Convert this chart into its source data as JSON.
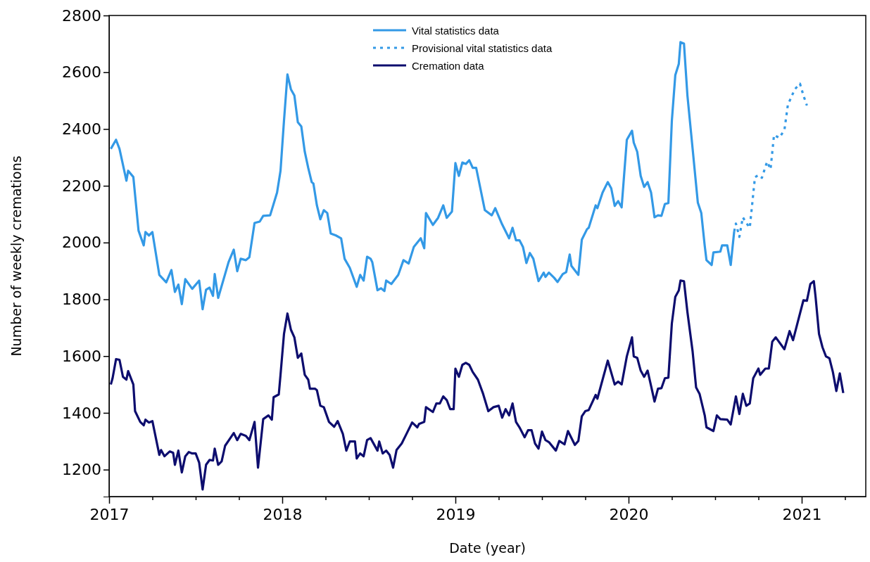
{
  "chart_data": {
    "type": "line",
    "xlabel": "Date (year)",
    "ylabel": "Number of weekly cremations",
    "xlim": [
      2017,
      2021.37
    ],
    "ylim": [
      1105,
      2800
    ],
    "xticks": [
      2017,
      {
        "value": 2017.25,
        "label": null
      },
      {
        "value": 2017.5,
        "label": null
      },
      {
        "value": 2017.75,
        "label": null
      },
      2018,
      {
        "value": 2018.25,
        "label": null
      },
      {
        "value": 2018.5,
        "label": null
      },
      {
        "value": 2018.75,
        "label": null
      },
      2019,
      {
        "value": 2019.25,
        "label": null
      },
      {
        "value": 2019.5,
        "label": null
      },
      {
        "value": 2019.75,
        "label": null
      },
      2020,
      {
        "value": 2020.25,
        "label": null
      },
      {
        "value": 2020.5,
        "label": null
      },
      {
        "value": 2020.75,
        "label": null
      },
      2021,
      {
        "value": 2021.25,
        "label": null
      }
    ],
    "yticks": [
      1200,
      1400,
      1600,
      1800,
      2000,
      2200,
      2400,
      2600,
      2800
    ],
    "grid": false,
    "legend": "top",
    "marker": "none",
    "series": [
      {
        "name": "Vital statistics data",
        "color": "#3399e6",
        "line_style": "solid",
        "x": [
          2017.01,
          2017.04,
          2017.06,
          2017.1,
          2017.11,
          2017.14,
          2017.17,
          2017.2,
          2017.21,
          2017.23,
          2017.25,
          2017.29,
          2017.33,
          2017.36,
          2017.38,
          2017.4,
          2017.42,
          2017.44,
          2017.48,
          2017.52,
          2017.54,
          2017.56,
          2017.58,
          2017.6,
          2017.61,
          2017.63,
          2017.69,
          2017.72,
          2017.74,
          2017.76,
          2017.79,
          2017.81,
          2017.84,
          2017.87,
          2017.89,
          2017.93,
          2017.97,
          2017.99,
          2018.01,
          2018.03,
          2018.05,
          2018.07,
          2018.09,
          2018.11,
          2018.13,
          2018.15,
          2018.17,
          2018.18,
          2018.2,
          2018.22,
          2018.24,
          2018.26,
          2018.28,
          2018.31,
          2018.34,
          2018.36,
          2018.39,
          2018.43,
          2018.45,
          2018.47,
          2018.49,
          2018.51,
          2018.52,
          2018.55,
          2018.57,
          2018.59,
          2018.6,
          2018.63,
          2018.67,
          2018.7,
          2018.73,
          2018.76,
          2018.8,
          2018.82,
          2018.83,
          2018.87,
          2018.9,
          2018.93,
          2018.95,
          2018.98,
          2019.0,
          2019.02,
          2019.04,
          2019.06,
          2019.08,
          2019.1,
          2019.12,
          2019.17,
          2019.21,
          2019.23,
          2019.27,
          2019.31,
          2019.33,
          2019.35,
          2019.37,
          2019.39,
          2019.41,
          2019.43,
          2019.45,
          2019.48,
          2019.51,
          2019.52,
          2019.54,
          2019.57,
          2019.59,
          2019.62,
          2019.64,
          2019.66,
          2019.67,
          2019.71,
          2019.73,
          2019.76,
          2019.77,
          2019.81,
          2019.82,
          2019.85,
          2019.88,
          2019.9,
          2019.92,
          2019.94,
          2019.96,
          2019.99,
          2020.02,
          2020.03,
          2020.05,
          2020.07,
          2020.09,
          2020.11,
          2020.13,
          2020.15,
          2020.17,
          2020.19,
          2020.21,
          2020.23,
          2020.25,
          2020.27,
          2020.29,
          2020.3,
          2020.32,
          2020.34,
          2020.37,
          2020.4,
          2020.42,
          2020.44,
          2020.45,
          2020.48,
          2020.49,
          2020.53,
          2020.54,
          2020.57,
          2020.59,
          2020.61
        ],
        "values": [
          2330,
          2362,
          2330,
          2218,
          2253,
          2231,
          2042,
          1990,
          2037,
          2025,
          2037,
          1886,
          1860,
          1903,
          1826,
          1852,
          1783,
          1871,
          1837,
          1866,
          1765,
          1834,
          1841,
          1812,
          1889,
          1805,
          1931,
          1975,
          1899,
          1943,
          1938,
          1948,
          2069,
          2074,
          2094,
          2096,
          2176,
          2253,
          2429,
          2592,
          2540,
          2518,
          2424,
          2409,
          2320,
          2263,
          2213,
          2208,
          2131,
          2082,
          2114,
          2104,
          2032,
          2025,
          2015,
          1943,
          1911,
          1844,
          1886,
          1866,
          1950,
          1943,
          1931,
          1832,
          1839,
          1829,
          1866,
          1854,
          1886,
          1938,
          1926,
          1985,
          2015,
          1980,
          2104,
          2062,
          2087,
          2131,
          2087,
          2109,
          2280,
          2235,
          2282,
          2277,
          2290,
          2263,
          2263,
          2114,
          2096,
          2121,
          2064,
          2015,
          2052,
          2008,
          2008,
          1985,
          1928,
          1963,
          1943,
          1864,
          1894,
          1879,
          1894,
          1876,
          1861,
          1889,
          1896,
          1958,
          1918,
          1886,
          2010,
          2047,
          2052,
          2131,
          2121,
          2176,
          2213,
          2191,
          2129,
          2146,
          2124,
          2362,
          2394,
          2352,
          2320,
          2235,
          2196,
          2213,
          2176,
          2089,
          2096,
          2094,
          2136,
          2139,
          2429,
          2590,
          2629,
          2706,
          2701,
          2518,
          2330,
          2141,
          2104,
          1988,
          1938,
          1921,
          1965,
          1968,
          1990,
          1990,
          1921,
          2039
        ]
      },
      {
        "name": "Provisional vital statistics data",
        "color": "#3399e6",
        "line_style": "dotted",
        "x": [
          2020.61,
          2020.62,
          2020.64,
          2020.66,
          2020.68,
          2020.7,
          2020.73,
          2020.75,
          2020.77,
          2020.8,
          2020.82,
          2020.84,
          2020.87,
          2020.9,
          2020.92,
          2020.96,
          2020.99,
          2021.01,
          2021.03
        ],
        "values": [
          2039,
          2067,
          2020,
          2089,
          2069,
          2052,
          2230,
          2238,
          2228,
          2285,
          2258,
          2379,
          2369,
          2396,
          2485,
          2540,
          2560,
          2518,
          2483
        ]
      },
      {
        "name": "Cremation data",
        "color": "#0d0d6e",
        "line_style": "solid",
        "x": [
          2017.01,
          2017.02,
          2017.04,
          2017.06,
          2017.08,
          2017.1,
          2017.11,
          2017.14,
          2017.15,
          2017.18,
          2017.2,
          2017.21,
          2017.23,
          2017.25,
          2017.29,
          2017.3,
          2017.32,
          2017.35,
          2017.37,
          2017.38,
          2017.4,
          2017.42,
          2017.44,
          2017.46,
          2017.48,
          2017.5,
          2017.52,
          2017.54,
          2017.56,
          2017.58,
          2017.6,
          2017.61,
          2017.63,
          2017.65,
          2017.67,
          2017.7,
          2017.72,
          2017.74,
          2017.76,
          2017.79,
          2017.81,
          2017.84,
          2017.86,
          2017.89,
          2017.92,
          2017.94,
          2017.95,
          2017.98,
          2017.99,
          2018.01,
          2018.03,
          2018.05,
          2018.07,
          2018.09,
          2018.11,
          2018.13,
          2018.15,
          2018.16,
          2018.19,
          2018.2,
          2018.22,
          2018.24,
          2018.27,
          2018.3,
          2018.32,
          2018.35,
          2018.37,
          2018.39,
          2018.42,
          2018.43,
          2018.45,
          2018.47,
          2018.49,
          2018.51,
          2018.55,
          2018.56,
          2018.58,
          2018.6,
          2018.62,
          2018.64,
          2018.66,
          2018.69,
          2018.72,
          2018.75,
          2018.78,
          2018.79,
          2018.82,
          2018.83,
          2018.87,
          2018.89,
          2018.91,
          2018.93,
          2018.95,
          2018.97,
          2018.99,
          2019.0,
          2019.02,
          2019.04,
          2019.06,
          2019.08,
          2019.1,
          2019.13,
          2019.16,
          2019.19,
          2019.22,
          2019.25,
          2019.27,
          2019.29,
          2019.31,
          2019.33,
          2019.35,
          2019.37,
          2019.4,
          2019.42,
          2019.44,
          2019.46,
          2019.48,
          2019.5,
          2019.52,
          2019.54,
          2019.58,
          2019.6,
          2019.63,
          2019.65,
          2019.69,
          2019.71,
          2019.73,
          2019.75,
          2019.77,
          2019.81,
          2019.82,
          2019.85,
          2019.88,
          2019.92,
          2019.94,
          2019.96,
          2019.99,
          2020.02,
          2020.03,
          2020.05,
          2020.07,
          2020.09,
          2020.11,
          2020.13,
          2020.15,
          2020.17,
          2020.19,
          2020.21,
          2020.23,
          2020.25,
          2020.27,
          2020.29,
          2020.3,
          2020.32,
          2020.34,
          2020.37,
          2020.39,
          2020.41,
          2020.44,
          2020.45,
          2020.49,
          2020.51,
          2020.53,
          2020.57,
          2020.59,
          2020.62,
          2020.64,
          2020.66,
          2020.68,
          2020.7,
          2020.72,
          2020.75,
          2020.76,
          2020.79,
          2020.81,
          2020.83,
          2020.85,
          2020.9,
          2020.93,
          2020.95,
          2021.01,
          2021.03,
          2021.05,
          2021.07,
          2021.08,
          2021.1,
          2021.12,
          2021.14,
          2021.16,
          2021.18,
          2021.2,
          2021.22,
          2021.24
        ],
        "values": [
          1500,
          1522,
          1589,
          1587,
          1527,
          1517,
          1547,
          1500,
          1406,
          1368,
          1356,
          1376,
          1366,
          1371,
          1252,
          1269,
          1247,
          1264,
          1259,
          1217,
          1267,
          1190,
          1247,
          1262,
          1257,
          1257,
          1225,
          1130,
          1217,
          1234,
          1232,
          1274,
          1217,
          1229,
          1284,
          1311,
          1329,
          1304,
          1326,
          1319,
          1304,
          1368,
          1207,
          1378,
          1391,
          1376,
          1455,
          1465,
          1534,
          1678,
          1750,
          1693,
          1666,
          1594,
          1609,
          1534,
          1517,
          1485,
          1485,
          1480,
          1425,
          1420,
          1368,
          1351,
          1371,
          1326,
          1267,
          1299,
          1299,
          1239,
          1257,
          1247,
          1304,
          1311,
          1267,
          1299,
          1257,
          1267,
          1252,
          1207,
          1269,
          1292,
          1329,
          1366,
          1349,
          1361,
          1368,
          1420,
          1403,
          1433,
          1433,
          1458,
          1445,
          1413,
          1413,
          1556,
          1527,
          1569,
          1576,
          1569,
          1544,
          1517,
          1467,
          1406,
          1420,
          1425,
          1383,
          1413,
          1391,
          1433,
          1368,
          1349,
          1314,
          1339,
          1339,
          1292,
          1274,
          1334,
          1304,
          1297,
          1267,
          1301,
          1289,
          1336,
          1287,
          1301,
          1388,
          1406,
          1410,
          1463,
          1450,
          1517,
          1584,
          1500,
          1510,
          1500,
          1599,
          1666,
          1599,
          1594,
          1549,
          1527,
          1549,
          1495,
          1440,
          1485,
          1487,
          1522,
          1524,
          1715,
          1809,
          1831,
          1866,
          1864,
          1755,
          1616,
          1490,
          1467,
          1391,
          1349,
          1336,
          1391,
          1378,
          1376,
          1359,
          1458,
          1396,
          1467,
          1425,
          1433,
          1522,
          1556,
          1534,
          1556,
          1556,
          1651,
          1666,
          1624,
          1688,
          1656,
          1797,
          1795,
          1854,
          1864,
          1809,
          1678,
          1631,
          1599,
          1592,
          1544,
          1477,
          1539,
          1470
        ]
      }
    ]
  }
}
